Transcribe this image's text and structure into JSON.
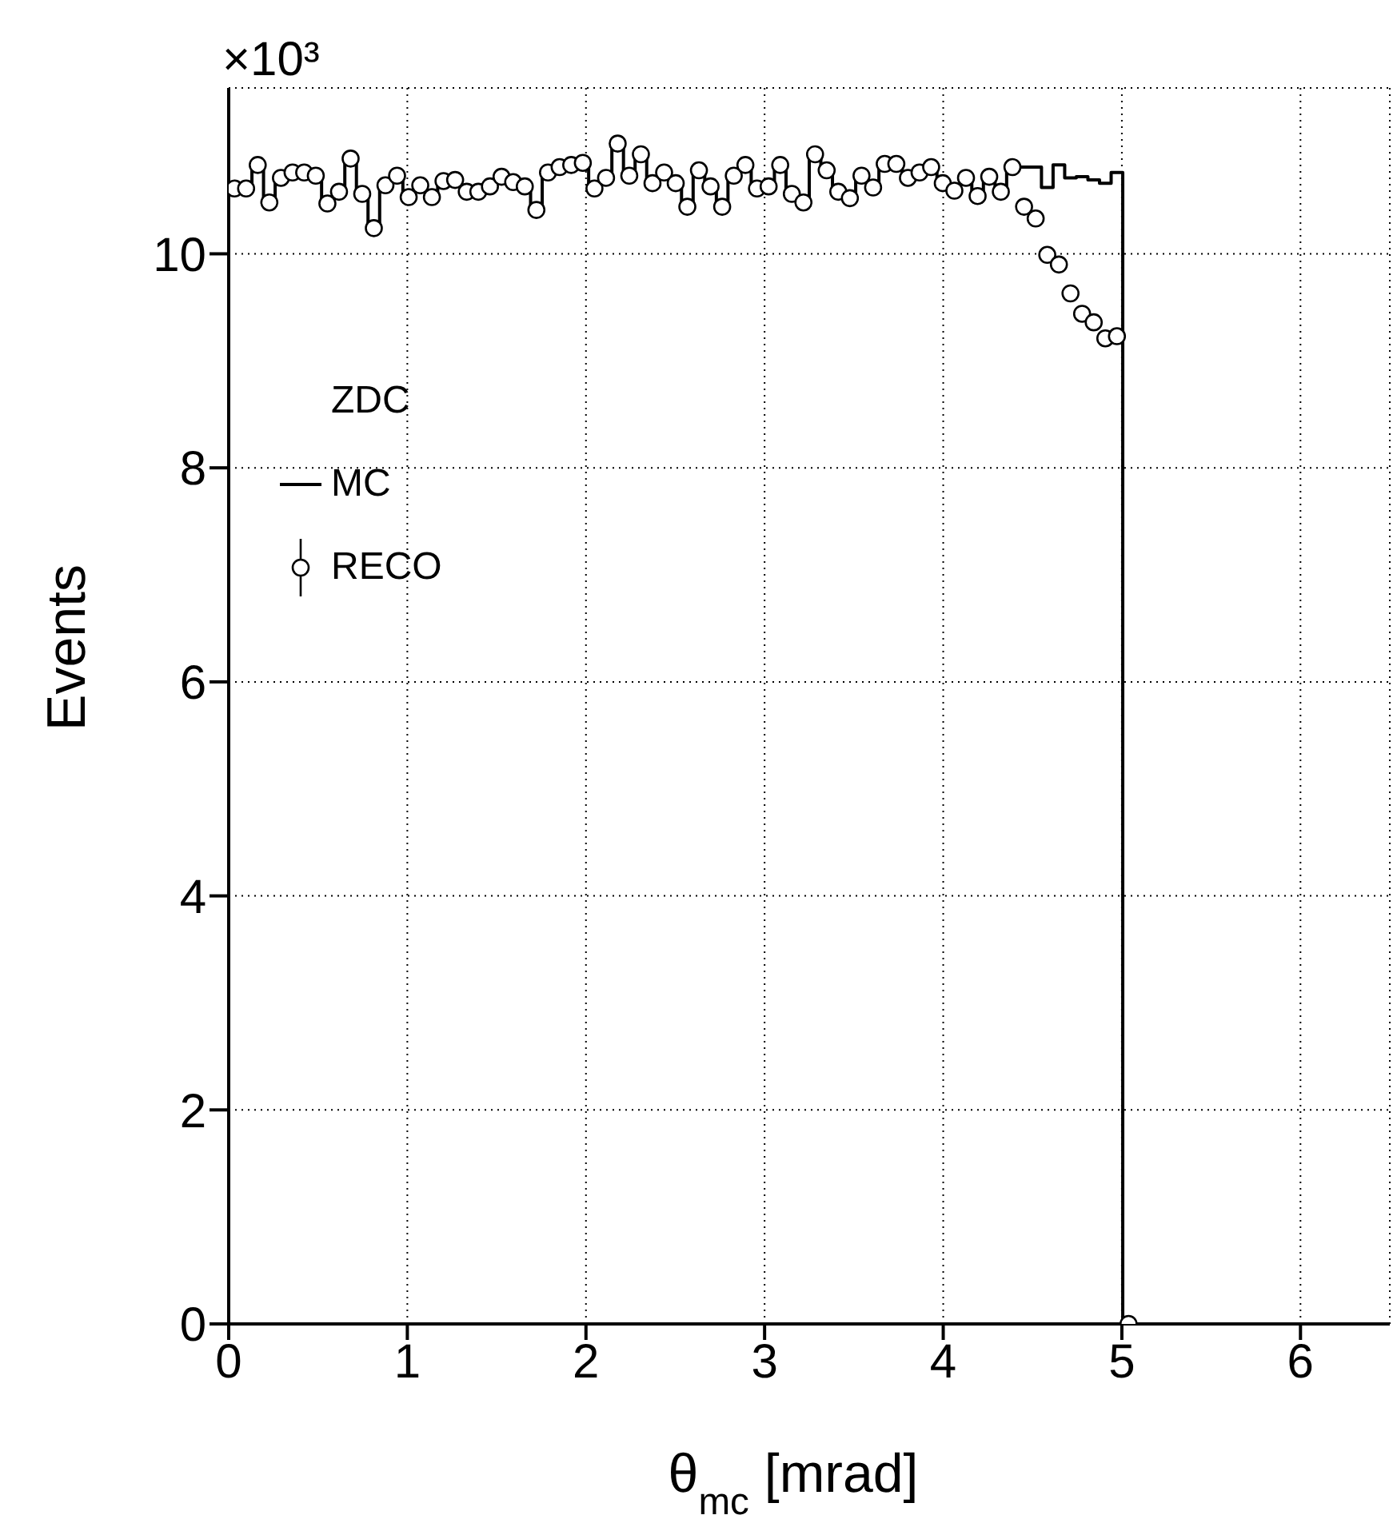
{
  "chart_data": {
    "type": "histogram",
    "xlabel": "θ$_{mc}$ [mrad]",
    "ylabel": "Events",
    "legend_title": "ZDC",
    "annotations": [
      "×10³"
    ],
    "bins": [
      0,
      0.065,
      0.13,
      0.195,
      0.26,
      0.325,
      0.39,
      0.455,
      0.52,
      0.585,
      0.65,
      0.715,
      0.78,
      0.845,
      0.91,
      0.975,
      1.04,
      1.105,
      1.17,
      1.235,
      1.3,
      1.365,
      1.43,
      1.495,
      1.56,
      1.625,
      1.69,
      1.755,
      1.82,
      1.885,
      1.95,
      2.015,
      2.08,
      2.145,
      2.21,
      2.275,
      2.34,
      2.405,
      2.47,
      2.535,
      2.6,
      2.665,
      2.73,
      2.795,
      2.86,
      2.925,
      2.99,
      3.055,
      3.12,
      3.185,
      3.25,
      3.315,
      3.38,
      3.445,
      3.51,
      3.575,
      3.64,
      3.705,
      3.77,
      3.835,
      3.9,
      3.965,
      4.03,
      4.095,
      4.16,
      4.225,
      4.29,
      4.355,
      4.42,
      4.485,
      4.55,
      4.615,
      4.68,
      4.745,
      4.81,
      4.875,
      4.94,
      5.005,
      5.07
    ],
    "series": [
      {
        "name": "MC",
        "color": "#000000",
        "values": [
          10.61,
          10.61,
          10.83,
          10.48,
          10.71,
          10.76,
          10.76,
          10.73,
          10.47,
          10.58,
          10.89,
          10.56,
          10.24,
          10.64,
          10.73,
          10.53,
          10.64,
          10.53,
          10.68,
          10.69,
          10.58,
          10.58,
          10.63,
          10.72,
          10.67,
          10.63,
          10.41,
          10.76,
          10.81,
          10.83,
          10.85,
          10.61,
          10.71,
          11.03,
          10.73,
          10.93,
          10.66,
          10.76,
          10.66,
          10.44,
          10.78,
          10.63,
          10.44,
          10.73,
          10.83,
          10.61,
          10.63,
          10.83,
          10.56,
          10.48,
          10.93,
          10.78,
          10.58,
          10.52,
          10.73,
          10.62,
          10.84,
          10.84,
          10.71,
          10.76,
          10.81,
          10.66,
          10.59,
          10.71,
          10.54,
          10.72,
          10.58,
          10.81,
          10.81,
          10.81,
          10.62,
          10.83,
          10.71,
          10.72,
          10.69,
          10.66,
          10.76,
          0
        ]
      },
      {
        "type": "scatter",
        "name": "RECO",
        "color": "#000000",
        "marker": "circle",
        "x": [
          0.0325,
          0.0975,
          0.1625,
          0.2275,
          0.2925,
          0.3575,
          0.4225,
          0.4875,
          0.5525,
          0.6175,
          0.6825,
          0.7475,
          0.8125,
          0.8775,
          0.9425,
          1.0075,
          1.0725,
          1.1375,
          1.2025,
          1.2675,
          1.3325,
          1.3975,
          1.4625,
          1.5275,
          1.5925,
          1.6575,
          1.7225,
          1.7875,
          1.8525,
          1.9175,
          1.9825,
          2.0475,
          2.1125,
          2.1775,
          2.2425,
          2.3075,
          2.3725,
          2.4375,
          2.5025,
          2.5675,
          2.6325,
          2.6975,
          2.7625,
          2.8275,
          2.8925,
          2.9575,
          3.0225,
          3.0875,
          3.1525,
          3.2175,
          3.2825,
          3.3475,
          3.4125,
          3.4775,
          3.5425,
          3.6075,
          3.6725,
          3.7375,
          3.8025,
          3.8675,
          3.9325,
          3.9975,
          4.0625,
          4.1275,
          4.1925,
          4.2575,
          4.3225,
          4.3875,
          4.4525,
          4.5175,
          4.5825,
          4.6475,
          4.7125,
          4.7775,
          4.8425,
          4.9075,
          4.9725,
          5.0375
        ],
        "values": [
          10.61,
          10.61,
          10.83,
          10.48,
          10.71,
          10.76,
          10.76,
          10.73,
          10.47,
          10.58,
          10.89,
          10.56,
          10.24,
          10.64,
          10.73,
          10.53,
          10.64,
          10.53,
          10.68,
          10.69,
          10.58,
          10.58,
          10.63,
          10.72,
          10.67,
          10.63,
          10.41,
          10.76,
          10.81,
          10.83,
          10.85,
          10.61,
          10.71,
          11.03,
          10.73,
          10.93,
          10.66,
          10.76,
          10.66,
          10.44,
          10.78,
          10.63,
          10.44,
          10.73,
          10.83,
          10.61,
          10.63,
          10.83,
          10.56,
          10.48,
          10.93,
          10.78,
          10.58,
          10.52,
          10.73,
          10.62,
          10.84,
          10.84,
          10.71,
          10.76,
          10.81,
          10.66,
          10.59,
          10.71,
          10.54,
          10.72,
          10.58,
          10.81,
          10.44,
          10.33,
          9.99,
          9.9,
          9.63,
          9.44,
          9.36,
          9.21,
          9.23,
          0
        ]
      }
    ],
    "xlim": [
      0,
      6.5
    ],
    "xticks": [
      0,
      1,
      2,
      3,
      4,
      5,
      6
    ],
    "ylim": [
      0,
      11.55
    ],
    "yticks": [
      0,
      2,
      4,
      6,
      8,
      10
    ],
    "grid": true,
    "legend": "top left"
  }
}
